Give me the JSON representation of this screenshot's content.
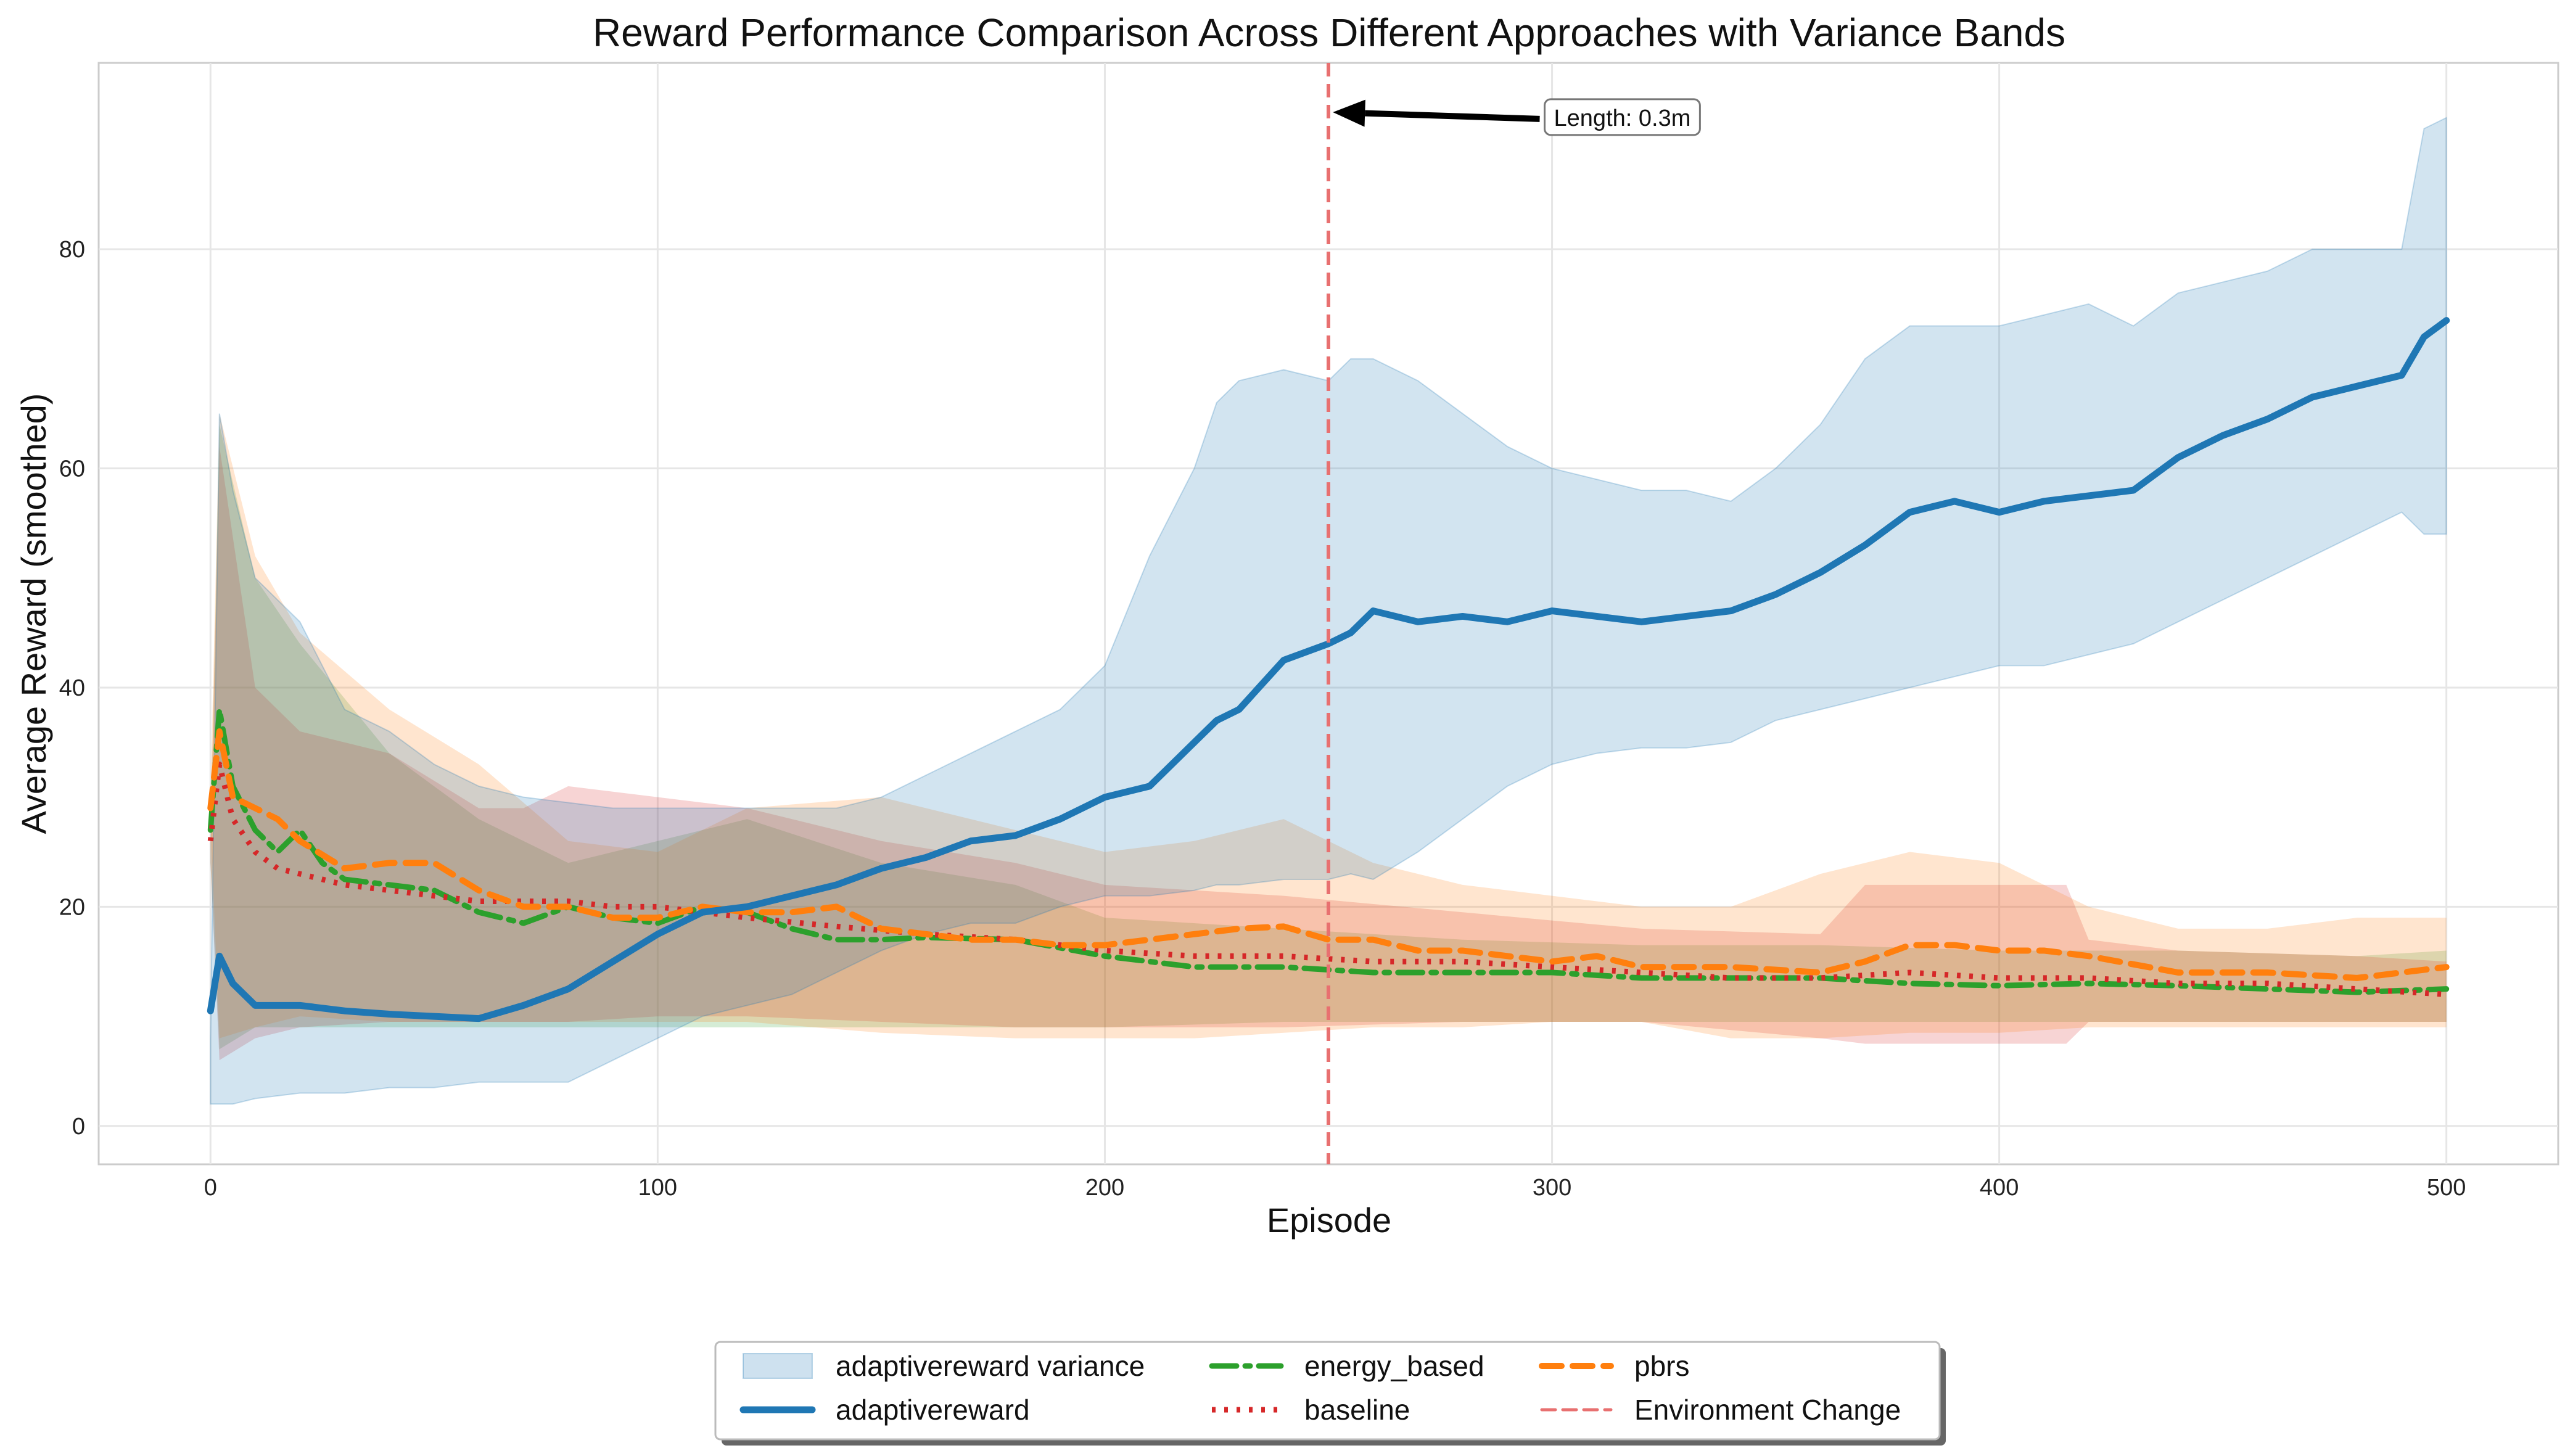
{
  "chart_data": {
    "type": "line",
    "title": "Reward Performance Comparison Across Different Approaches with Variance Bands",
    "xlabel": "Episode",
    "ylabel": "Average Reward (smoothed)",
    "xlim": [
      -25,
      525
    ],
    "ylim": [
      -3.5,
      97
    ],
    "xticks": [
      0,
      100,
      200,
      300,
      400,
      500
    ],
    "yticks": [
      0,
      20,
      40,
      60,
      80
    ],
    "grid": true,
    "legend_position": "bottom-center",
    "vline": {
      "x": 250,
      "label": "Environment Change",
      "color": "#e87070"
    },
    "annotation": {
      "text": "Length: 0.3m",
      "text_at": [
        300,
        92
      ],
      "arrow_to": [
        251,
        92.5
      ]
    },
    "series": [
      {
        "name": "adaptivereward",
        "color": "#1f77b4",
        "style": "solid",
        "x": [
          0,
          2,
          5,
          10,
          20,
          30,
          40,
          50,
          60,
          70,
          80,
          90,
          100,
          110,
          120,
          130,
          140,
          150,
          160,
          170,
          180,
          190,
          200,
          210,
          220,
          225,
          230,
          240,
          250,
          255,
          260,
          270,
          280,
          290,
          300,
          310,
          320,
          330,
          340,
          350,
          360,
          370,
          380,
          390,
          400,
          410,
          420,
          430,
          440,
          450,
          460,
          470,
          480,
          490,
          495,
          500
        ],
        "values": [
          10.5,
          15.5,
          13,
          11,
          11,
          10.5,
          10.2,
          10,
          9.8,
          11,
          12.5,
          15,
          17.5,
          19.5,
          20,
          21,
          22,
          23.5,
          24.5,
          26,
          26.5,
          28,
          30,
          31,
          35,
          37,
          38,
          42.5,
          44,
          45,
          47,
          46,
          46.5,
          46,
          47,
          46.5,
          46,
          46.5,
          47,
          48.5,
          50.5,
          53,
          56,
          57,
          56,
          57,
          57.5,
          58,
          61,
          63,
          64.5,
          66.5,
          67.5,
          68.5,
          72,
          73.5
        ],
        "band_upper": [
          8,
          65,
          58,
          50,
          46,
          38,
          36,
          33,
          31,
          30,
          29.5,
          29,
          29,
          29,
          29,
          29,
          29,
          30,
          32,
          34,
          36,
          38,
          42,
          52,
          60,
          66,
          68,
          69,
          68,
          70,
          70,
          68,
          65,
          62,
          60,
          59,
          58,
          58,
          57,
          60,
          64,
          70,
          73,
          73,
          73,
          74,
          75,
          73,
          76,
          77,
          78,
          80,
          80,
          80,
          91,
          92
        ],
        "band_lower": [
          2,
          2,
          2,
          2.5,
          3,
          3,
          3.5,
          3.5,
          4,
          4,
          4,
          6,
          8,
          10,
          11,
          12,
          14,
          16,
          17.5,
          18.5,
          18.5,
          20,
          21,
          21,
          21.5,
          22,
          22,
          22.5,
          22.5,
          23,
          22.5,
          25,
          28,
          31,
          33,
          34,
          34.5,
          34.5,
          35,
          37,
          38,
          39,
          40,
          41,
          42,
          42,
          43,
          44,
          46,
          48,
          50,
          52,
          54,
          56,
          54,
          54
        ]
      },
      {
        "name": "energy_based",
        "color": "#2ca02c",
        "style": "dashdot",
        "x": [
          0,
          2,
          5,
          10,
          15,
          20,
          25,
          30,
          40,
          50,
          60,
          70,
          80,
          90,
          100,
          110,
          120,
          130,
          140,
          150,
          160,
          180,
          200,
          220,
          240,
          260,
          280,
          300,
          320,
          340,
          360,
          380,
          400,
          420,
          440,
          460,
          480,
          500
        ],
        "values": [
          27,
          38,
          31,
          27,
          25,
          27,
          24,
          22.5,
          22,
          21.5,
          19.5,
          18.5,
          20,
          19,
          18.5,
          20,
          19.5,
          18,
          17,
          17,
          17.2,
          17,
          15.5,
          14.5,
          14.5,
          14,
          14,
          14,
          13.5,
          13.5,
          13.5,
          13,
          12.8,
          13,
          12.8,
          12.5,
          12.2,
          12.5
        ]
      },
      {
        "name": "baseline",
        "color": "#d62728",
        "style": "dotted",
        "x": [
          0,
          2,
          5,
          10,
          15,
          20,
          30,
          40,
          50,
          60,
          70,
          80,
          90,
          100,
          110,
          120,
          140,
          160,
          180,
          200,
          220,
          240,
          260,
          280,
          300,
          320,
          340,
          360,
          380,
          400,
          420,
          440,
          460,
          480,
          500
        ],
        "values": [
          26,
          33,
          28,
          25,
          23.5,
          23,
          22,
          21.5,
          21,
          20.5,
          20.5,
          20.5,
          20,
          20,
          19.5,
          19,
          18.2,
          17.5,
          17,
          16,
          15.5,
          15.5,
          15,
          15,
          14.5,
          14,
          13.5,
          13.5,
          14,
          13.5,
          13.5,
          13,
          13,
          12.5,
          12
        ]
      },
      {
        "name": "pbrs",
        "color": "#ff7f0e",
        "style": "dashed",
        "x": [
          0,
          2,
          5,
          10,
          15,
          20,
          30,
          40,
          50,
          60,
          70,
          80,
          90,
          100,
          110,
          120,
          130,
          140,
          150,
          160,
          170,
          180,
          190,
          200,
          210,
          220,
          230,
          240,
          250,
          260,
          270,
          280,
          290,
          300,
          310,
          320,
          340,
          360,
          370,
          380,
          390,
          400,
          410,
          420,
          440,
          460,
          480,
          500
        ],
        "values": [
          29,
          36,
          30,
          29,
          28,
          26,
          23.5,
          24,
          24,
          21.5,
          20,
          20,
          19,
          19,
          20,
          19.5,
          19.5,
          20,
          18,
          17.5,
          17,
          17,
          16.5,
          16.5,
          17,
          17.5,
          18,
          18.2,
          17,
          17,
          16,
          16,
          15.5,
          15,
          15.5,
          14.5,
          14.5,
          14,
          15,
          16.5,
          16.5,
          16,
          16,
          15.5,
          14,
          14,
          13.5,
          14.5
        ]
      }
    ],
    "bands_faint": [
      {
        "for": "energy_based",
        "color": "#2ca02c",
        "x": [
          0,
          2,
          10,
          20,
          40,
          60,
          80,
          100,
          120,
          150,
          180,
          200,
          240,
          280,
          320,
          360,
          400,
          440,
          480,
          500
        ],
        "upper": [
          26,
          64,
          50,
          44,
          34,
          28,
          24,
          26,
          28,
          24,
          22,
          19,
          18,
          17,
          16.5,
          16.5,
          16,
          16,
          15.5,
          16
        ],
        "lower": [
          24,
          7,
          9,
          9,
          9,
          9,
          9,
          9,
          9,
          9,
          9,
          9,
          9.5,
          9.5,
          9.5,
          9.5,
          9.5,
          9.5,
          9.5,
          9.5
        ]
      },
      {
        "for": "baseline",
        "color": "#d62728",
        "x": [
          0,
          2,
          10,
          20,
          40,
          60,
          70,
          80,
          100,
          120,
          150,
          180,
          200,
          240,
          280,
          320,
          360,
          370,
          400,
          415,
          420,
          440,
          480,
          500
        ],
        "upper": [
          26,
          62,
          40,
          36,
          34,
          29,
          29,
          31,
          30,
          29,
          26,
          24,
          22,
          21,
          19.5,
          18,
          17.5,
          22,
          22,
          22,
          17,
          16,
          15.5,
          15
        ],
        "lower": [
          24,
          6,
          8,
          9,
          9.5,
          9.5,
          9.5,
          9.5,
          10,
          10,
          9.5,
          9,
          9,
          9,
          9.5,
          9.5,
          8,
          7.5,
          7.5,
          7.5,
          9.5,
          9.5,
          9.5,
          9.5
        ]
      },
      {
        "for": "pbrs",
        "color": "#ff7f0e",
        "x": [
          0,
          2,
          10,
          20,
          40,
          60,
          80,
          100,
          120,
          150,
          180,
          200,
          220,
          240,
          260,
          280,
          300,
          320,
          340,
          360,
          380,
          400,
          420,
          440,
          460,
          480,
          500
        ],
        "upper": [
          30,
          65,
          52,
          45,
          38,
          33,
          26,
          25,
          29,
          30,
          27,
          25,
          26,
          28,
          24,
          22,
          21,
          20,
          20,
          23,
          25,
          24,
          20,
          18,
          18,
          19,
          19
        ],
        "lower": [
          28,
          8,
          9,
          10,
          9.5,
          9.5,
          9.5,
          9.5,
          9.5,
          8.5,
          8,
          8,
          8,
          8.5,
          9,
          9,
          9.5,
          9.5,
          8,
          8,
          8.5,
          8.5,
          9,
          9,
          9,
          9,
          9
        ]
      }
    ],
    "legend": [
      {
        "label": "adaptivereward variance",
        "kind": "patch",
        "color": "#1f77b4"
      },
      {
        "label": "adaptivereward",
        "kind": "solid",
        "color": "#1f77b4"
      },
      {
        "label": "energy_based",
        "kind": "dashdot",
        "color": "#2ca02c"
      },
      {
        "label": "baseline",
        "kind": "dotted",
        "color": "#d62728"
      },
      {
        "label": "pbrs",
        "kind": "dashed",
        "color": "#ff7f0e"
      },
      {
        "label": "Environment Change",
        "kind": "dashed-thin",
        "color": "#e87070"
      }
    ]
  }
}
